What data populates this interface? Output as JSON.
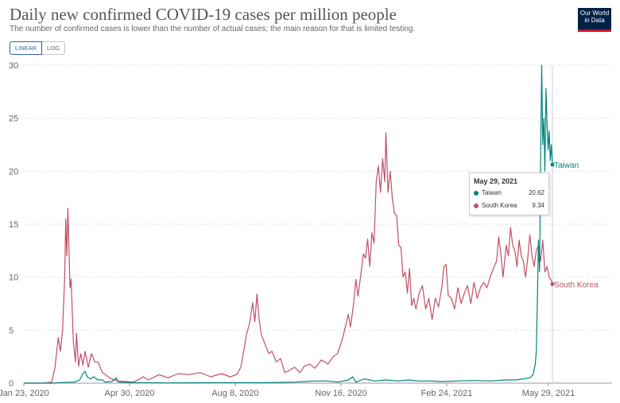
{
  "header": {
    "title": "Daily new confirmed COVID-19 cases per million people",
    "subtitle": "The number of confirmed cases is lower than the number of actual cases; the main reason for that is limited testing.",
    "logo_line1": "Our World",
    "logo_line2": "in Data"
  },
  "controls": {
    "linear_label": "LINEAR",
    "log_label": "LOG",
    "selected": "LINEAR"
  },
  "tooltip": {
    "date": "May 29, 2021",
    "rows": [
      {
        "name": "Taiwan",
        "value": "20.62",
        "color": "#00847e"
      },
      {
        "name": "South Korea",
        "value": "9.34",
        "color": "#c15065"
      }
    ]
  },
  "chart_data": {
    "type": "line",
    "title": "Daily new confirmed COVID-19 cases per million people",
    "xlabel": "",
    "ylabel": "",
    "x_ticks": [
      "Jan 23, 2020",
      "Apr 30, 2020",
      "Aug 8, 2020",
      "Nov 16, 2020",
      "Feb 24, 2021",
      "May 29, 2021"
    ],
    "y_ticks": [
      0,
      5,
      10,
      15,
      20,
      25,
      30
    ],
    "ylim": [
      0,
      30
    ],
    "xlim": [
      "2020-01-23",
      "2021-05-29"
    ],
    "grid": "horizontal",
    "legend": "end-of-line labels",
    "series": [
      {
        "name": "South Korea",
        "color": "#c15065",
        "points": [
          [
            "2020-01-23",
            0
          ],
          [
            "2020-02-10",
            0
          ],
          [
            "2020-02-18",
            0.1
          ],
          [
            "2020-02-21",
            1.5
          ],
          [
            "2020-02-24",
            4.3
          ],
          [
            "2020-02-26",
            3.0
          ],
          [
            "2020-02-28",
            5.0
          ],
          [
            "2020-03-01",
            10.0
          ],
          [
            "2020-03-02",
            15.5
          ],
          [
            "2020-03-03",
            12.0
          ],
          [
            "2020-03-04",
            16.5
          ],
          [
            "2020-03-06",
            9.0
          ],
          [
            "2020-03-07",
            9.8
          ],
          [
            "2020-03-09",
            4.0
          ],
          [
            "2020-03-11",
            2.0
          ],
          [
            "2020-03-12",
            4.7
          ],
          [
            "2020-03-14",
            1.6
          ],
          [
            "2020-03-16",
            2.8
          ],
          [
            "2020-03-18",
            1.7
          ],
          [
            "2020-03-20",
            3.0
          ],
          [
            "2020-03-23",
            1.5
          ],
          [
            "2020-03-26",
            2.8
          ],
          [
            "2020-03-29",
            2.0
          ],
          [
            "2020-04-01",
            2.0
          ],
          [
            "2020-04-05",
            1.0
          ],
          [
            "2020-04-08",
            0.8
          ],
          [
            "2020-04-12",
            0.5
          ],
          [
            "2020-04-16",
            0.3
          ],
          [
            "2020-04-20",
            0.2
          ],
          [
            "2020-04-28",
            0.15
          ],
          [
            "2020-05-04",
            0.1
          ],
          [
            "2020-05-10",
            0.4
          ],
          [
            "2020-05-13",
            0.6
          ],
          [
            "2020-05-18",
            0.3
          ],
          [
            "2020-05-28",
            0.8
          ],
          [
            "2020-06-05",
            0.5
          ],
          [
            "2020-06-15",
            0.9
          ],
          [
            "2020-06-25",
            0.8
          ],
          [
            "2020-07-05",
            1.0
          ],
          [
            "2020-07-15",
            0.6
          ],
          [
            "2020-07-25",
            0.9
          ],
          [
            "2020-08-02",
            0.6
          ],
          [
            "2020-08-08",
            0.8
          ],
          [
            "2020-08-12",
            1.5
          ],
          [
            "2020-08-15",
            3.2
          ],
          [
            "2020-08-17",
            4.5
          ],
          [
            "2020-08-20",
            5.6
          ],
          [
            "2020-08-23",
            7.6
          ],
          [
            "2020-08-25",
            5.8
          ],
          [
            "2020-08-27",
            8.4
          ],
          [
            "2020-08-29",
            6.0
          ],
          [
            "2020-08-31",
            4.6
          ],
          [
            "2020-09-03",
            3.8
          ],
          [
            "2020-09-07",
            2.8
          ],
          [
            "2020-09-10",
            3.0
          ],
          [
            "2020-09-14",
            2.0
          ],
          [
            "2020-09-18",
            2.3
          ],
          [
            "2020-09-22",
            1.0
          ],
          [
            "2020-09-26",
            1.2
          ],
          [
            "2020-10-01",
            1.5
          ],
          [
            "2020-10-06",
            1.0
          ],
          [
            "2020-10-10",
            1.6
          ],
          [
            "2020-10-15",
            1.8
          ],
          [
            "2020-10-20",
            1.4
          ],
          [
            "2020-10-26",
            2.2
          ],
          [
            "2020-11-01",
            1.8
          ],
          [
            "2020-11-06",
            2.5
          ],
          [
            "2020-11-10",
            2.8
          ],
          [
            "2020-11-14",
            4.0
          ],
          [
            "2020-11-18",
            5.6
          ],
          [
            "2020-11-20",
            6.5
          ],
          [
            "2020-11-22",
            5.3
          ],
          [
            "2020-11-25",
            7.5
          ],
          [
            "2020-11-27",
            9.8
          ],
          [
            "2020-11-29",
            8.2
          ],
          [
            "2020-12-02",
            10.5
          ],
          [
            "2020-12-04",
            12.2
          ],
          [
            "2020-12-06",
            11.8
          ],
          [
            "2020-12-08",
            13.6
          ],
          [
            "2020-12-10",
            11.0
          ],
          [
            "2020-12-12",
            14.2
          ],
          [
            "2020-12-14",
            13.2
          ],
          [
            "2020-12-16",
            19.0
          ],
          [
            "2020-12-18",
            20.5
          ],
          [
            "2020-12-20",
            18.0
          ],
          [
            "2020-12-22",
            21.2
          ],
          [
            "2020-12-24",
            19.0
          ],
          [
            "2020-12-25",
            23.6
          ],
          [
            "2020-12-27",
            18.0
          ],
          [
            "2020-12-29",
            20.0
          ],
          [
            "2020-12-31",
            17.4
          ],
          [
            "2021-01-02",
            16.0
          ],
          [
            "2021-01-04",
            15.8
          ],
          [
            "2021-01-06",
            13.0
          ],
          [
            "2021-01-08",
            12.8
          ],
          [
            "2021-01-10",
            10.0
          ],
          [
            "2021-01-12",
            10.5
          ],
          [
            "2021-01-14",
            8.5
          ],
          [
            "2021-01-16",
            10.8
          ],
          [
            "2021-01-18",
            7.3
          ],
          [
            "2021-01-20",
            8.0
          ],
          [
            "2021-01-22",
            7.0
          ],
          [
            "2021-01-25",
            8.5
          ],
          [
            "2021-01-28",
            9.2
          ],
          [
            "2021-01-31",
            7.0
          ],
          [
            "2021-02-03",
            8.0
          ],
          [
            "2021-02-06",
            6.0
          ],
          [
            "2021-02-09",
            8.0
          ],
          [
            "2021-02-12",
            7.2
          ],
          [
            "2021-02-15",
            9.0
          ],
          [
            "2021-02-17",
            11.0
          ],
          [
            "2021-02-19",
            11.2
          ],
          [
            "2021-02-21",
            8.3
          ],
          [
            "2021-02-24",
            8.0
          ],
          [
            "2021-02-27",
            7.0
          ],
          [
            "2021-03-02",
            9.0
          ],
          [
            "2021-03-05",
            7.5
          ],
          [
            "2021-03-08",
            8.5
          ],
          [
            "2021-03-11",
            9.2
          ],
          [
            "2021-03-14",
            7.5
          ],
          [
            "2021-03-17",
            9.5
          ],
          [
            "2021-03-20",
            8.0
          ],
          [
            "2021-03-23",
            9.0
          ],
          [
            "2021-03-26",
            9.5
          ],
          [
            "2021-03-29",
            9.0
          ],
          [
            "2021-04-01",
            10.0
          ],
          [
            "2021-04-04",
            10.8
          ],
          [
            "2021-04-07",
            11.5
          ],
          [
            "2021-04-09",
            13.8
          ],
          [
            "2021-04-11",
            12.2
          ],
          [
            "2021-04-13",
            10.0
          ],
          [
            "2021-04-16",
            13.0
          ],
          [
            "2021-04-18",
            12.0
          ],
          [
            "2021-04-20",
            14.7
          ],
          [
            "2021-04-22",
            13.0
          ],
          [
            "2021-04-24",
            12.5
          ],
          [
            "2021-04-26",
            11.0
          ],
          [
            "2021-04-28",
            13.5
          ],
          [
            "2021-04-30",
            12.0
          ],
          [
            "2021-05-02",
            11.5
          ],
          [
            "2021-05-04",
            10.0
          ],
          [
            "2021-05-06",
            11.8
          ],
          [
            "2021-05-08",
            14.0
          ],
          [
            "2021-05-10",
            12.0
          ],
          [
            "2021-05-12",
            11.0
          ],
          [
            "2021-05-14",
            12.5
          ],
          [
            "2021-05-16",
            13.0
          ],
          [
            "2021-05-18",
            11.5
          ],
          [
            "2021-05-20",
            13.5
          ],
          [
            "2021-05-22",
            10.5
          ],
          [
            "2021-05-24",
            11.0
          ],
          [
            "2021-05-26",
            10.0
          ],
          [
            "2021-05-28",
            9.7
          ],
          [
            "2021-05-29",
            9.34
          ]
        ]
      },
      {
        "name": "Taiwan",
        "color": "#00847e",
        "points": [
          [
            "2020-01-23",
            0
          ],
          [
            "2020-02-20",
            0
          ],
          [
            "2020-02-26",
            0.05
          ],
          [
            "2020-03-10",
            0.1
          ],
          [
            "2020-03-15",
            0.3
          ],
          [
            "2020-03-18",
            0.9
          ],
          [
            "2020-03-20",
            1.1
          ],
          [
            "2020-03-22",
            0.6
          ],
          [
            "2020-03-25",
            0.4
          ],
          [
            "2020-03-28",
            0.6
          ],
          [
            "2020-04-01",
            0.3
          ],
          [
            "2020-04-05",
            0.3
          ],
          [
            "2020-04-08",
            0.1
          ],
          [
            "2020-04-14",
            0.15
          ],
          [
            "2020-04-18",
            0.5
          ],
          [
            "2020-04-20",
            0.1
          ],
          [
            "2020-05-01",
            0.05
          ],
          [
            "2020-06-01",
            0.02
          ],
          [
            "2020-07-01",
            0.03
          ],
          [
            "2020-08-01",
            0.05
          ],
          [
            "2020-09-01",
            0.04
          ],
          [
            "2020-10-01",
            0.1
          ],
          [
            "2020-10-20",
            0.2
          ],
          [
            "2020-11-01",
            0.2
          ],
          [
            "2020-11-10",
            0.1
          ],
          [
            "2020-11-20",
            0.3
          ],
          [
            "2020-11-24",
            0.6
          ],
          [
            "2020-11-27",
            0.1
          ],
          [
            "2020-12-05",
            0.4
          ],
          [
            "2020-12-15",
            0.2
          ],
          [
            "2020-12-25",
            0.3
          ],
          [
            "2021-01-05",
            0.2
          ],
          [
            "2021-01-15",
            0.3
          ],
          [
            "2021-01-25",
            0.2
          ],
          [
            "2021-02-05",
            0.2
          ],
          [
            "2021-02-15",
            0.15
          ],
          [
            "2021-03-01",
            0.2
          ],
          [
            "2021-03-15",
            0.25
          ],
          [
            "2021-04-01",
            0.2
          ],
          [
            "2021-04-15",
            0.3
          ],
          [
            "2021-04-25",
            0.3
          ],
          [
            "2021-05-02",
            0.4
          ],
          [
            "2021-05-08",
            0.5
          ],
          [
            "2021-05-11",
            0.8
          ],
          [
            "2021-05-13",
            1.8
          ],
          [
            "2021-05-14",
            3.0
          ],
          [
            "2021-05-15",
            8.0
          ],
          [
            "2021-05-16",
            13.5
          ],
          [
            "2021-05-17",
            10.5
          ],
          [
            "2021-05-18",
            21.0
          ],
          [
            "2021-05-19",
            30.0
          ],
          [
            "2021-05-20",
            22.5
          ],
          [
            "2021-05-21",
            25.0
          ],
          [
            "2021-05-22",
            20.0
          ],
          [
            "2021-05-23",
            27.8
          ],
          [
            "2021-05-24",
            24.5
          ],
          [
            "2021-05-25",
            22.0
          ],
          [
            "2021-05-26",
            23.8
          ],
          [
            "2021-05-27",
            21.0
          ],
          [
            "2021-05-28",
            22.5
          ],
          [
            "2021-05-29",
            20.62
          ]
        ]
      }
    ]
  }
}
